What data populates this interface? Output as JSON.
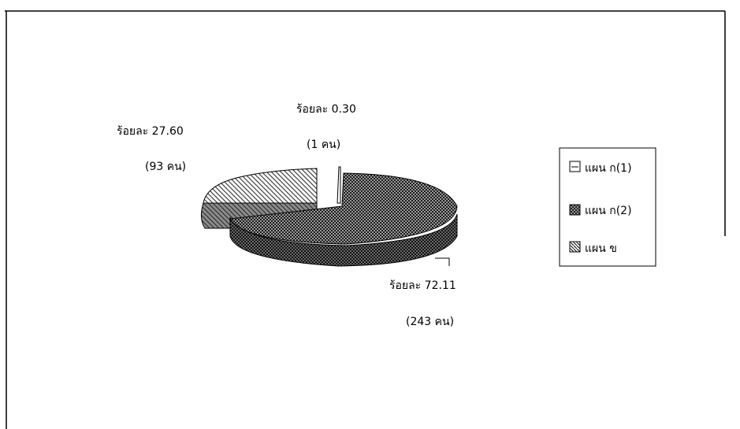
{
  "chart_data": {
    "type": "pie",
    "style": "3d-exploded",
    "slices": [
      {
        "name": "แผน ก(1)",
        "percent": 0.3,
        "count": 1,
        "pct_label": "ร้อยละ 0.30",
        "count_label": "(1 คน)",
        "pattern": "hatch-light"
      },
      {
        "name": "แผน ก(2)",
        "percent": 72.11,
        "count": 243,
        "pct_label": "ร้อยละ 72.11",
        "count_label": "(243 คน)",
        "pattern": "checker-dark"
      },
      {
        "name": "แผน ข",
        "percent": 27.6,
        "count": 93,
        "pct_label": "ร้อยละ 27.60",
        "count_label": "(93 คน)",
        "pattern": "diagonal"
      }
    ],
    "legend": {
      "position": "right",
      "entries": [
        "แผน ก(1)",
        "แผน ก(2)",
        "แผน ข"
      ]
    }
  }
}
